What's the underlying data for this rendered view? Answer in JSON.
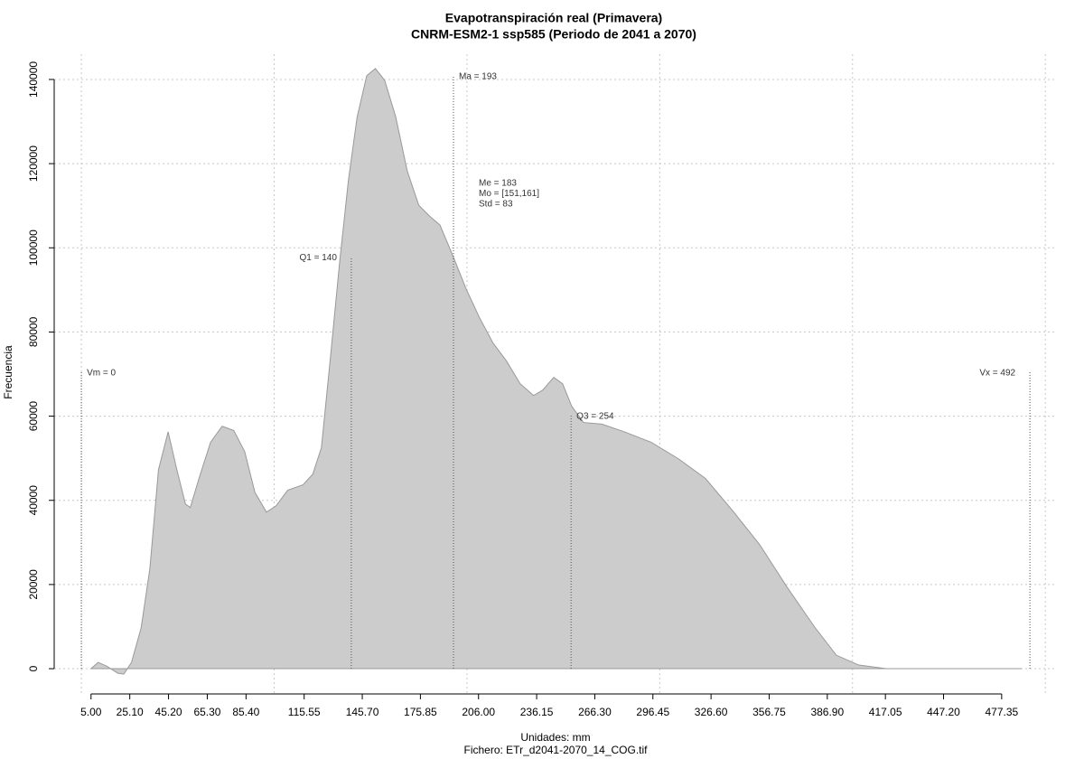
{
  "chart_data": {
    "type": "area",
    "title": "Evapotranspiración real (Primavera)",
    "subtitle": "CNRM-ESM2-1 ssp585 (Periodo de 2041 a 2070)",
    "x_label": "Unidades: mm",
    "caption": "Fichero: ETr_d2041-2070_14_COG.tif",
    "y_label": "Frecuencia",
    "color": "#cccccc",
    "x": [
      5,
      8.7,
      13,
      19,
      22,
      26,
      31,
      35.5,
      40,
      45,
      49.5,
      54,
      56.5,
      61,
      67,
      73,
      79,
      84.7,
      90,
      96,
      101,
      107,
      115,
      120,
      124.5,
      129,
      134,
      138.5,
      143,
      148,
      152.5,
      157.3,
      163,
      169,
      175,
      180.7,
      186,
      192,
      199.5,
      206.5,
      213.5,
      220.5,
      227.6,
      234.6,
      239.3,
      245,
      249.6,
      254.3,
      260.4,
      270,
      281.5,
      295.5,
      309.6,
      323.7,
      337.7,
      351.8,
      366,
      380,
      391.6,
      403.3,
      417.4,
      487.7
    ],
    "values": [
      0,
      1500,
      650,
      -1100,
      -1300,
      1500,
      9700,
      23700,
      47300,
      56300,
      47300,
      39100,
      38300,
      45200,
      53800,
      57600,
      56600,
      51600,
      41900,
      37200,
      38700,
      42400,
      43700,
      46200,
      52500,
      73100,
      96800,
      116000,
      131000,
      140900,
      142600,
      139800,
      131200,
      118300,
      110100,
      107500,
      105400,
      98900,
      90300,
      83400,
      77400,
      73100,
      67700,
      64900,
      66200,
      69200,
      67700,
      62400,
      58500,
      58100,
      56300,
      53800,
      49900,
      45200,
      37600,
      29500,
      19400,
      10100,
      3200,
      860,
      0,
      0
    ],
    "xlim": [
      -14.1,
      506
    ],
    "ylim": [
      -6000,
      146000
    ],
    "xticks": [
      {
        "value": 5,
        "label": "5.00"
      },
      {
        "value": 25.1,
        "label": "25.10"
      },
      {
        "value": 45.2,
        "label": "45.20"
      },
      {
        "value": 65.3,
        "label": "65.30"
      },
      {
        "value": 85.4,
        "label": "85.40"
      },
      {
        "value": 115.55,
        "label": "115.55"
      },
      {
        "value": 145.7,
        "label": "145.70"
      },
      {
        "value": 175.85,
        "label": "175.85"
      },
      {
        "value": 206,
        "label": "206.00"
      },
      {
        "value": 236.15,
        "label": "236.15"
      },
      {
        "value": 266.3,
        "label": "266.30"
      },
      {
        "value": 296.45,
        "label": "296.45"
      },
      {
        "value": 326.6,
        "label": "326.60"
      },
      {
        "value": 356.75,
        "label": "356.75"
      },
      {
        "value": 386.9,
        "label": "386.90"
      },
      {
        "value": 417.05,
        "label": "417.05"
      },
      {
        "value": 447.2,
        "label": "447.20"
      },
      {
        "value": 477.35,
        "label": "477.35"
      }
    ],
    "yticks": [
      0,
      20000,
      40000,
      60000,
      80000,
      100000,
      120000,
      140000
    ],
    "xgrid": [
      0,
      100,
      200,
      300,
      400,
      500
    ],
    "grid": true,
    "markers": [
      {
        "label": "Vm = 0",
        "x": 0,
        "y": 70500,
        "label_side": "right"
      },
      {
        "label": "Q1 = 140",
        "x": 140,
        "y": 97800,
        "label_side": "left"
      },
      {
        "label": "Ma = 193",
        "x": 193,
        "y": 140900,
        "label_side": "right"
      },
      {
        "label": "Q3 = 254",
        "x": 254,
        "y": 60200,
        "label_side": "right"
      },
      {
        "label": "Vx = 492",
        "x": 492,
        "y": 70500,
        "label_side": "left"
      }
    ],
    "stats": [
      "Me = 183",
      "Mo = [151,161]",
      "Std = 83"
    ]
  }
}
